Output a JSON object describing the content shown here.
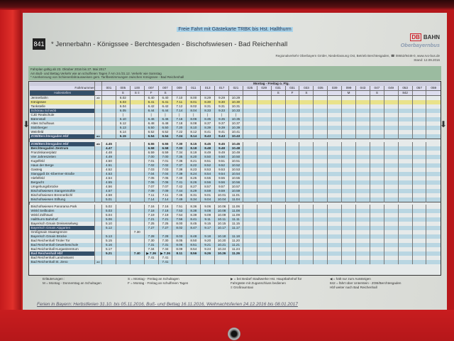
{
  "header": {
    "banner": "Freie Fahrt mit Gästekarte TRBK bis Hst. Hallthurm",
    "line_number": "841",
    "route": "* Jennerbahn - Königssee - Berchtesgaden - Bischofswiesen - Bad Reichenhall",
    "operator": "Regionalverkehr Oberbayern GmbH, Niederlassung Ost, Betrieb Berchtesgaden, ☎ 08652/9448-0, www.rvo-bus.de",
    "stand": "Stand: 12.09.2016",
    "db_logo": "DB",
    "db_bahn": "BAHN",
    "brand": "Oberbayernbus"
  },
  "info": [
    "Fahrplan gültig ab 23. Oktober 2016 bis 27. Mai 2017",
    "Am Buß- und Bettag Verkehr wie an schulfreien Tagen // Am 24./31.12. Verkehr wie Samstag",
    "* Anerkennung von Schienenfahrausweisen gem. Tarifbestimmungen zwischen Königssee - Bad Reichenhall"
  ],
  "timetable": {
    "days": "Montag - Freitag o. Ftg.",
    "trip_label": "Fahrtnummer",
    "stops_label": "Haltestellen",
    "trips": [
      "001",
      "005",
      "100",
      "007",
      "007",
      "009",
      "011",
      "013",
      "017",
      "021",
      "025",
      "029",
      "031",
      "031",
      "033",
      "035",
      "039",
      "099",
      "043",
      "047",
      "049",
      "053",
      "057",
      "059"
    ],
    "notes": [
      "",
      "S",
      "S ≡",
      "F",
      "S",
      "",
      "",
      "",
      "",
      "",
      "",
      "",
      "S",
      "F",
      "S",
      "",
      "",
      "M",
      "",
      "S",
      "",
      "842",
      "",
      ""
    ],
    "sections": [
      {
        "rows": [
          {
            "stop": "Jennerbahn",
            "ab": "ab",
            "times": [
              "",
              "6.02",
              "",
              "6.40",
              "6.40",
              "7.10",
              "8.00",
              "8.29",
              "9.29",
              "10.29"
            ]
          },
          {
            "stop": "Königssee",
            "ab": "",
            "times": [
              "",
              "6.03",
              "",
              "6.41",
              "6.41",
              "7.11",
              "8.01",
              "8.30",
              "9.30",
              "10.30"
            ]
          },
          {
            "stop": "Tankstelle",
            "ab": "",
            "times": [
              "",
              "6.04",
              "",
              "6.42",
              "6.42",
              "7.12",
              "8.02",
              "8.31",
              "9.31",
              "10.31"
            ]
          },
          {
            "stop": "Schönau Schwöb",
            "ab": "",
            "times": [
              "",
              "6.05",
              "",
              "6.44",
              "6.44",
              "7.14",
              "8.04",
              "8.33",
              "9.33",
              "10.33"
            ]
          },
          {
            "stop": "CJD Realschule",
            "ab": "",
            "times": [
              "",
              "|",
              "",
              "|",
              "|",
              "|",
              "|",
              "|",
              "|",
              "|"
            ]
          },
          {
            "stop": "Bärenstall",
            "ab": "",
            "times": [
              "",
              "6.10",
              "",
              "6.46",
              "6.46",
              "7.16",
              "8.06",
              "8.35",
              "9.35",
              "10.35"
            ]
          },
          {
            "stop": "Altes Schulhaus",
            "ab": "",
            "times": [
              "",
              "6.12",
              "",
              "6.48",
              "6.48",
              "7.18",
              "8.08",
              "8.37",
              "9.37",
              "10.37"
            ]
          },
          {
            "stop": "Stolzberger",
            "ab": "",
            "times": [
              "",
              "6.13",
              "",
              "6.50",
              "6.50",
              "7.20",
              "8.10",
              "8.39",
              "9.39",
              "10.39"
            ]
          },
          {
            "stop": "Weinfeld",
            "ab": "",
            "times": [
              "",
              "6.14",
              "",
              "6.52",
              "6.52",
              "7.22",
              "8.12",
              "8.41",
              "9.41",
              "10.41"
            ]
          },
          {
            "stop": "ZOB/Berchtesgaden Hbf",
            "ab": "an",
            "times": [
              "",
              "6.15",
              "",
              "6.54",
              "6.54",
              "7.24",
              "8.14",
              "8.43",
              "9.43",
              "10.43"
            ]
          }
        ]
      },
      {
        "rows": [
          {
            "stop": "ZOB/Berchtesgaden Hbf",
            "ab": "ab",
            "times": [
              "4.45",
              "",
              "",
              "6.55",
              "6.55",
              "7.30",
              "8.15",
              "8.45",
              "9.45",
              "10.45"
            ]
          },
          {
            "stop": "Berchtesgaden Zentrum",
            "ab": "",
            "times": [
              "4.47",
              "",
              "",
              "6.58",
              "6.58",
              "7.33",
              "8.18",
              "8.48",
              "9.48",
              "10.48"
            ]
          },
          {
            "stop": "Franziskanerplatz",
            "ab": "",
            "times": [
              "4.48",
              "",
              "",
              "6.59",
              "6.59",
              "7.34",
              "8.19",
              "8.49",
              "9.49",
              "10.49"
            ]
          },
          {
            "stop": "Vier Jahreszeiten",
            "ab": "",
            "times": [
              "4.49",
              "",
              "",
              "7.00",
              "7.00",
              "7.35",
              "8.20",
              "8.50",
              "9.50",
              "10.50"
            ]
          },
          {
            "stop": "Kugelfeld",
            "ab": "",
            "times": [
              "4.50",
              "",
              "",
              "7.01",
              "7.01",
              "7.36",
              "8.21",
              "8.51",
              "9.51",
              "10.51"
            ]
          },
          {
            "stop": "Haus der Berge",
            "ab": "",
            "times": [
              "4.51",
              "",
              "",
              "7.02",
              "7.02",
              "7.37",
              "8.22",
              "8.52",
              "9.52",
              "10.52"
            ]
          },
          {
            "stop": "Gasteig",
            "ab": "",
            "times": [
              "4.52",
              "",
              "",
              "7.03",
              "7.03",
              "7.38",
              "8.23",
              "8.53",
              "9.53",
              "10.53"
            ]
          },
          {
            "stop": "Stanggaß Dr.-Ebermer-Straße",
            "ab": "",
            "times": [
              "4.53",
              "",
              "",
              "7.04",
              "7.04",
              "7.39",
              "8.24",
              "8.54",
              "9.54",
              "10.54"
            ]
          },
          {
            "stop": "Hiefelfeld",
            "ab": "",
            "times": [
              "4.54",
              "",
              "",
              "7.05",
              "7.05",
              "7.40",
              "8.25",
              "8.55",
              "9.55",
              "10.55"
            ]
          },
          {
            "stop": "Bergacht",
            "ab": "",
            "times": [
              "4.55",
              "",
              "",
              "7.06",
              "7.06",
              "7.41",
              "8.26",
              "8.56",
              "9.56",
              "10.56"
            ]
          },
          {
            "stop": "Umgehungsbrücke",
            "ab": "",
            "times": [
              "4.56",
              "",
              "",
              "7.07",
              "7.07",
              "7.42",
              "8.27",
              "8.57",
              "9.57",
              "10.57"
            ]
          },
          {
            "stop": "Bischofswiesen Stangenmühle",
            "ab": "",
            "times": [
              "4.57",
              "",
              "",
              "7.09",
              "7.09",
              "7.44",
              "8.29",
              "8.59",
              "9.59",
              "10.59"
            ]
          },
          {
            "stop": "Bischofswiesen Brennerbichl",
            "ab": "",
            "times": [
              "4.58",
              "",
              "",
              "7.11",
              "7.11",
              "7.46",
              "8.31",
              "9.01",
              "10.01",
              "11.01"
            ]
          },
          {
            "stop": "Bischofswiesen Stiftung",
            "ab": "",
            "times": [
              "5.01",
              "",
              "",
              "7.14",
              "7.14",
              "7.49",
              "8.34",
              "9.04",
              "10.04",
              "11.04"
            ]
          }
        ]
      },
      {
        "rows": [
          {
            "stop": "Bischofswiesen Panorama Park",
            "ab": "",
            "times": [
              "5.02",
              "",
              "",
              "7.16",
              "7.16",
              "7.51",
              "8.36",
              "9.06",
              "10.06",
              "11.06"
            ]
          },
          {
            "stop": "Winkl Seilboden",
            "ab": "",
            "times": [
              "5.03",
              "",
              "",
              "7.18",
              "7.18",
              "7.53",
              "8.38",
              "9.08",
              "10.08",
              "11.08"
            ]
          },
          {
            "stop": "Winkl Zollhäusl",
            "ab": "",
            "times": [
              "5.04",
              "",
              "",
              "7.19",
              "7.19",
              "7.54",
              "8.39",
              "9.09",
              "10.09",
              "11.09"
            ]
          },
          {
            "stop": "Hallthurm Bahnhof",
            "ab": "",
            "times": [
              "5.06",
              "",
              "",
              "7.21",
              "7.21",
              "7.56",
              "8.41",
              "9.11",
              "10.11",
              "11.11"
            ]
          },
          {
            "stop": "Bayerisch Gmain Dreisesselweg",
            "ab": "",
            "times": [
              "5.10",
              "",
              "",
              "7.25",
              "7.25",
              "8.00",
              "8.45",
              "9.15",
              "10.15",
              "11.15"
            ]
          },
          {
            "stop": "Bayerisch Gmain Alpgarten",
            "ab": "",
            "times": [
              "5.12",
              "",
              "",
              "7.27",
              "7.27",
              "8.02",
              "8.47",
              "9.17",
              "10.17",
              "11.17"
            ]
          },
          {
            "stop": "Großgmain Staatsgrenze",
            "ab": "",
            "times": [
              "",
              "",
              "7.30",
              "",
              "",
              "",
              "",
              "",
              "",
              ""
            ]
          },
          {
            "stop": "Bayerisch Gmain Brücke",
            "ab": "",
            "times": [
              "5.13",
              "",
              "",
              "7.28",
              "7.28",
              "8.03",
              "8.48",
              "9.18",
              "10.18",
              "11.18"
            ]
          },
          {
            "stop": "Bad Reichenhall Tiroler Tor",
            "ab": "",
            "times": [
              "5.15",
              "",
              "",
              "7.30",
              "7.30",
              "8.05",
              "8.50",
              "9.20",
              "10.20",
              "11.20"
            ]
          },
          {
            "stop": "Bad Reichenhall Gewerbeschule",
            "ab": "",
            "times": [
              "5.16",
              "",
              "",
              "7.31",
              "7.31",
              "8.06",
              "8.51",
              "9.21",
              "10.21",
              "11.21"
            ]
          },
          {
            "stop": "Bad Reichenhall Kurgastzentrum",
            "ab": "",
            "times": [
              "5.17",
              "",
              "",
              "7.34",
              "7.34",
              "8.09",
              "8.54",
              "9.24",
              "10.24",
              "11.24"
            ]
          },
          {
            "stop": "Bad Reichenhall Hbf",
            "ab": "",
            "times": [
              "5.21",
              "",
              "7.40",
              "▶ 7.36",
              "▶ 7.36",
              "8.11",
              "8.56",
              "9.26",
              "10.26",
              "11.26"
            ]
          },
          {
            "stop": "Bad Reichenhall Landratsamt",
            "ab": "",
            "times": [
              "",
              "",
              "",
              "7.41",
              "7.41",
              "",
              "",
              "",
              "",
              ""
            ]
          },
          {
            "stop": "Bad Reichenhall St. Zeno",
            "ab": "an",
            "times": [
              "",
              "",
              "",
              "",
              "7.41",
              "",
              "",
              "",
              "",
              ""
            ]
          }
        ]
      }
    ]
  },
  "legend": {
    "title": "Erläuterungen :",
    "m": "M   = Montag - Donnerstag an Schultagen",
    "s": "S   = Montag - Freitag an Schultagen",
    "f": "F   = Montag - Freitag an schulfreien Tagen",
    "bedarf": "▶ = bei Bedarf Stadtwerke Hst. Hauptbahnhof für",
    "bedarf2": "Fahrgäste mit Zuganschluss bedienen",
    "taxi": "≡ Großraumtaxi",
    "aus": "◀ = hält nur zum Aussteigen",
    "r842": "842 = fährt über Unterstein - ZOB/Berchtesgaden",
    "r842b": "Hbf weiter nach Bad Reichenhall"
  },
  "footer": "Ferien in Bayern: Herbstferien 31.10. bis 05.11.2016, Buß- und Bettag 16.11.2016, Weihnachtsferien 24.12.2016 bis 08.01.2017"
}
